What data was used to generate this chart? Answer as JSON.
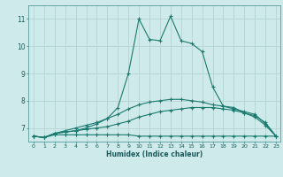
{
  "xlabel": "Humidex (Indice chaleur)",
  "ylabel": "",
  "bg_color": "#ceeaea",
  "grid_color": "#b8d8d8",
  "line_color": "#1a7a6e",
  "xlim": [
    -0.5,
    23.4
  ],
  "ylim": [
    6.5,
    11.5
  ],
  "yticks": [
    7,
    8,
    9,
    10,
    11
  ],
  "xticks": [
    0,
    1,
    2,
    3,
    4,
    5,
    6,
    7,
    8,
    9,
    10,
    11,
    12,
    13,
    14,
    15,
    16,
    17,
    18,
    19,
    20,
    21,
    22,
    23
  ],
  "lines": [
    {
      "x": [
        0,
        1,
        2,
        3,
        4,
        5,
        6,
        7,
        8,
        9,
        10,
        11,
        12,
        13,
        14,
        15,
        16,
        17,
        18,
        19,
        20,
        21,
        22,
        23
      ],
      "y": [
        6.7,
        6.65,
        6.75,
        6.75,
        6.75,
        6.75,
        6.75,
        6.75,
        6.75,
        6.75,
        6.7,
        6.7,
        6.7,
        6.7,
        6.7,
        6.7,
        6.7,
        6.7,
        6.7,
        6.7,
        6.7,
        6.7,
        6.7,
        6.7
      ]
    },
    {
      "x": [
        0,
        1,
        2,
        3,
        4,
        5,
        6,
        7,
        8,
        9,
        10,
        11,
        12,
        13,
        14,
        15,
        16,
        17,
        18,
        19,
        20,
        21,
        22,
        23
      ],
      "y": [
        6.7,
        6.65,
        6.8,
        6.85,
        6.9,
        6.95,
        7.0,
        7.05,
        7.15,
        7.25,
        7.4,
        7.5,
        7.6,
        7.65,
        7.7,
        7.75,
        7.75,
        7.75,
        7.7,
        7.65,
        7.55,
        7.45,
        7.2,
        6.7
      ]
    },
    {
      "x": [
        0,
        1,
        2,
        3,
        4,
        5,
        6,
        7,
        8,
        9,
        10,
        11,
        12,
        13,
        14,
        15,
        16,
        17,
        18,
        19,
        20,
        21,
        22,
        23
      ],
      "y": [
        6.7,
        6.65,
        6.8,
        6.9,
        7.0,
        7.1,
        7.2,
        7.35,
        7.5,
        7.7,
        7.85,
        7.95,
        8.0,
        8.05,
        8.05,
        8.0,
        7.95,
        7.85,
        7.8,
        7.7,
        7.6,
        7.5,
        7.15,
        6.7
      ]
    },
    {
      "x": [
        0,
        1,
        2,
        3,
        4,
        5,
        6,
        7,
        8,
        9,
        10,
        11,
        12,
        13,
        14,
        15,
        16,
        17,
        18,
        19,
        20,
        21,
        22,
        23
      ],
      "y": [
        6.7,
        6.65,
        6.8,
        6.85,
        6.9,
        7.0,
        7.15,
        7.35,
        7.75,
        9.0,
        11.0,
        10.25,
        10.2,
        11.1,
        10.2,
        10.1,
        9.8,
        8.5,
        7.8,
        7.75,
        7.55,
        7.4,
        7.1,
        6.7
      ]
    }
  ]
}
